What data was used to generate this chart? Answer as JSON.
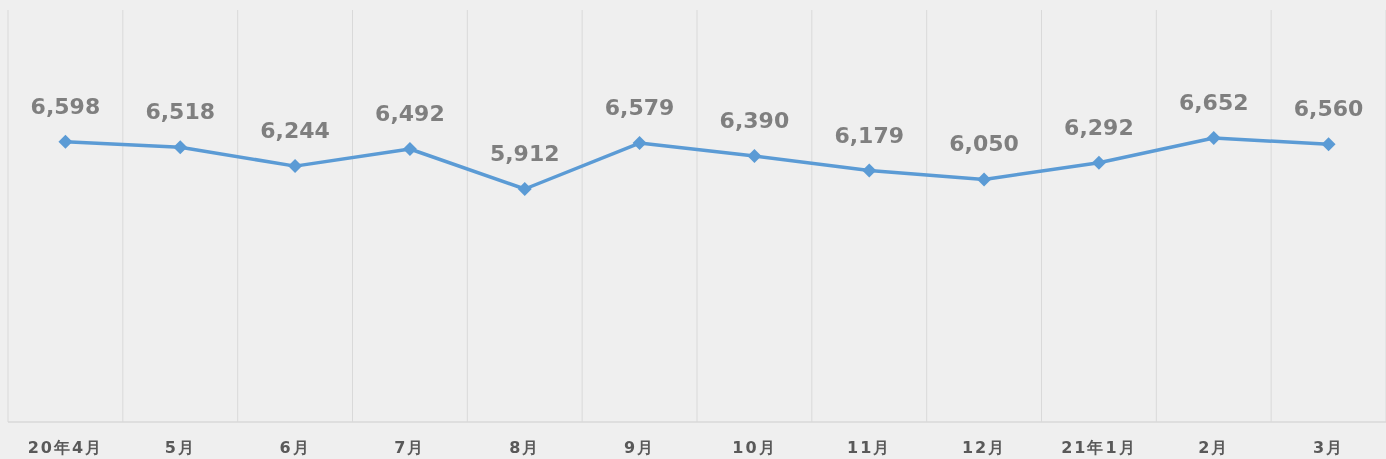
{
  "chart_data": {
    "type": "line",
    "categories": [
      "20年4月",
      "5月",
      "6月",
      "7月",
      "8月",
      "9月",
      "10月",
      "11月",
      "12月",
      "21年1月",
      "2月",
      "3月"
    ],
    "series": [
      {
        "color": "#5b9bd5",
        "values": [
          6598,
          6518,
          6244,
          6492,
          5912,
          6579,
          6390,
          6179,
          6050,
          6292,
          6652,
          6560
        ],
        "value_labels": [
          "6,598",
          "6,518",
          "6,244",
          "6,492",
          "5,912",
          "6,579",
          "6,390",
          "6,179",
          "6,050",
          "6,292",
          "6,652",
          "6,560"
        ]
      }
    ],
    "grid": "x",
    "marker": "diamond",
    "line_style": "solid"
  }
}
